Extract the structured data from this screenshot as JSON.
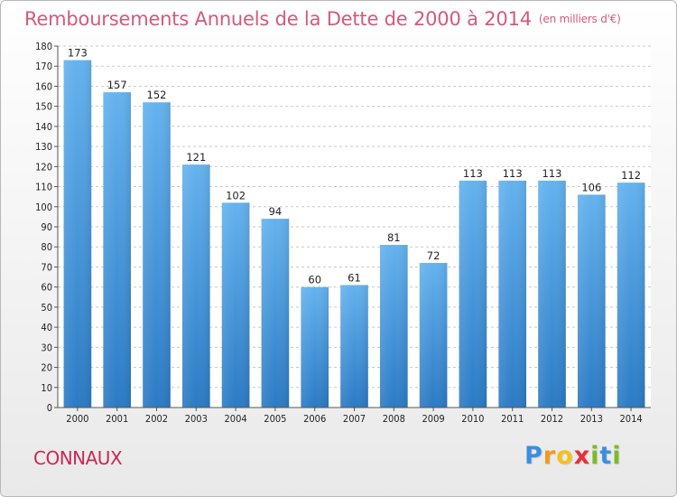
{
  "chart_data": {
    "type": "bar",
    "title": "Remboursements Annuels de la Dette de 2000 à 2014",
    "unit_note": "(en milliers d'€)",
    "categories": [
      "2000",
      "2001",
      "2002",
      "2003",
      "2004",
      "2005",
      "2006",
      "2007",
      "2008",
      "2009",
      "2010",
      "2011",
      "2012",
      "2013",
      "2014"
    ],
    "values": [
      173,
      157,
      152,
      121,
      102,
      94,
      60,
      61,
      81,
      72,
      113,
      113,
      113,
      106,
      112
    ],
    "ylim": [
      0,
      180
    ],
    "ytick_step": 10,
    "grid": true,
    "bar_color_top": "#64b2ee",
    "bar_color_bottom": "#2b7ac4",
    "xlabel": "",
    "ylabel": ""
  },
  "commune": "CONNAUX",
  "brand": {
    "letters": [
      "P",
      "r",
      "o",
      "x",
      "i",
      "t",
      "i"
    ],
    "colors": [
      "#3b8ee0",
      "#f29a1c",
      "#f2c21c",
      "#e8303a",
      "#7cbb2a",
      "#3b8ee0",
      "#7cbb2a"
    ]
  }
}
